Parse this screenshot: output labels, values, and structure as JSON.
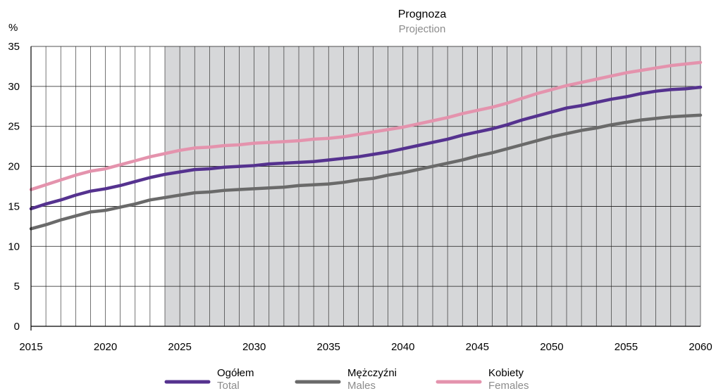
{
  "chart_data": {
    "type": "line",
    "annotation": {
      "title": "Prognoza",
      "subtitle": "Projection"
    },
    "ylabel": "%",
    "xlim": [
      2015,
      2060
    ],
    "ylim": [
      0,
      35
    ],
    "yticks": [
      0,
      5,
      10,
      15,
      20,
      25,
      30,
      35
    ],
    "xticks": [
      2015,
      2020,
      2025,
      2030,
      2035,
      2040,
      2045,
      2050,
      2055,
      2060
    ],
    "projection_range": [
      2024,
      2060
    ],
    "grid": true,
    "legend_position": "bottom",
    "x": [
      2015,
      2016,
      2017,
      2018,
      2019,
      2020,
      2021,
      2022,
      2023,
      2024,
      2025,
      2026,
      2027,
      2028,
      2029,
      2030,
      2031,
      2032,
      2033,
      2034,
      2035,
      2036,
      2037,
      2038,
      2039,
      2040,
      2041,
      2042,
      2043,
      2044,
      2045,
      2046,
      2047,
      2048,
      2049,
      2050,
      2051,
      2052,
      2053,
      2054,
      2055,
      2056,
      2057,
      2058,
      2059,
      2060
    ],
    "series": [
      {
        "name": "Ogółem",
        "name_en": "Total",
        "color": "#55328f",
        "values": [
          14.7,
          15.3,
          15.8,
          16.4,
          16.9,
          17.2,
          17.6,
          18.1,
          18.6,
          19.0,
          19.3,
          19.6,
          19.7,
          19.9,
          20.0,
          20.1,
          20.3,
          20.4,
          20.5,
          20.6,
          20.8,
          21.0,
          21.2,
          21.5,
          21.8,
          22.2,
          22.6,
          23.0,
          23.4,
          23.9,
          24.3,
          24.7,
          25.2,
          25.8,
          26.3,
          26.8,
          27.3,
          27.6,
          28.0,
          28.4,
          28.7,
          29.1,
          29.4,
          29.6,
          29.7,
          29.9
        ]
      },
      {
        "name": "Mężczyźni",
        "name_en": "Males",
        "color": "#6a6a6a",
        "values": [
          12.2,
          12.7,
          13.3,
          13.8,
          14.3,
          14.5,
          14.9,
          15.3,
          15.8,
          16.1,
          16.4,
          16.7,
          16.8,
          17.0,
          17.1,
          17.2,
          17.3,
          17.4,
          17.6,
          17.7,
          17.8,
          18.0,
          18.3,
          18.5,
          18.9,
          19.2,
          19.6,
          20.0,
          20.4,
          20.8,
          21.3,
          21.7,
          22.2,
          22.7,
          23.2,
          23.7,
          24.1,
          24.5,
          24.8,
          25.2,
          25.5,
          25.8,
          26.0,
          26.2,
          26.3,
          26.4
        ]
      },
      {
        "name": "Kobiety",
        "name_en": "Females",
        "color": "#e493ad",
        "values": [
          17.1,
          17.7,
          18.3,
          18.9,
          19.4,
          19.7,
          20.2,
          20.7,
          21.2,
          21.6,
          22.0,
          22.3,
          22.4,
          22.6,
          22.7,
          22.9,
          23.0,
          23.1,
          23.2,
          23.4,
          23.5,
          23.7,
          24.0,
          24.3,
          24.6,
          24.9,
          25.3,
          25.7,
          26.1,
          26.6,
          27.0,
          27.4,
          27.9,
          28.5,
          29.1,
          29.6,
          30.1,
          30.5,
          30.9,
          31.3,
          31.7,
          32.0,
          32.3,
          32.6,
          32.8,
          33.0
        ]
      }
    ]
  }
}
